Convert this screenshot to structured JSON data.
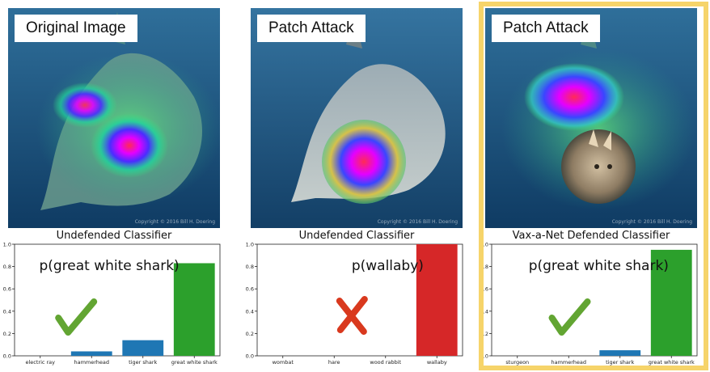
{
  "panels": [
    {
      "image_label": "Original Image",
      "watermark": "Copyright © 2016 Bill H. Doering",
      "highlighted": false
    },
    {
      "image_label": "Patch Attack",
      "watermark": "Copyright © 2016 Bill H. Doering",
      "highlighted": false
    },
    {
      "image_label": "Patch Attack",
      "watermark": "Copyright © 2016 Bill H. Doering",
      "highlighted": true
    }
  ],
  "colors": {
    "highlight_border": "#f6d46a",
    "check": "#62a532",
    "cross": "#d9391e",
    "bar_blue": "#1f77b4",
    "bar_green": "#2ca02c",
    "bar_red": "#d62728"
  },
  "chart_data": [
    {
      "type": "bar",
      "title": "Undefended Classifier",
      "annotation": "p(great white shark)",
      "verdict": "check",
      "categories": [
        "electric ray",
        "hammerhead",
        "tiger shark",
        "great white shark"
      ],
      "values": [
        0.0,
        0.04,
        0.14,
        0.83
      ],
      "bar_colors": [
        "#1f77b4",
        "#1f77b4",
        "#1f77b4",
        "#2ca02c"
      ],
      "ylim": [
        0,
        1.0
      ],
      "yticks": [
        "0.0",
        "0.2",
        "0.4",
        "0.6",
        "0.8",
        "1.0"
      ]
    },
    {
      "type": "bar",
      "title": "Undefended Classifier",
      "annotation": "p(wallaby)",
      "verdict": "cross",
      "categories": [
        "wombat",
        "hare",
        "wood rabbit",
        "wallaby"
      ],
      "values": [
        0.0,
        0.0,
        0.0,
        1.0
      ],
      "bar_colors": [
        "#1f77b4",
        "#1f77b4",
        "#1f77b4",
        "#d62728"
      ],
      "ylim": [
        0,
        1.0
      ],
      "yticks": [
        "0.0",
        "0.2",
        "0.4",
        "0.6",
        "0.8",
        "1.0"
      ]
    },
    {
      "type": "bar",
      "title": "Vax-a-Net Defended Classifier",
      "annotation": "p(great white shark)",
      "verdict": "check",
      "categories": [
        "sturgeon",
        "hammerhead",
        "tiger shark",
        "great white shark"
      ],
      "values": [
        0.0,
        0.0,
        0.05,
        0.95
      ],
      "bar_colors": [
        "#1f77b4",
        "#1f77b4",
        "#1f77b4",
        "#2ca02c"
      ],
      "ylim": [
        0,
        1.0
      ],
      "yticks": [
        "0.0",
        "0.2",
        "0.4",
        "0.6",
        "0.8",
        "1.0"
      ]
    }
  ]
}
